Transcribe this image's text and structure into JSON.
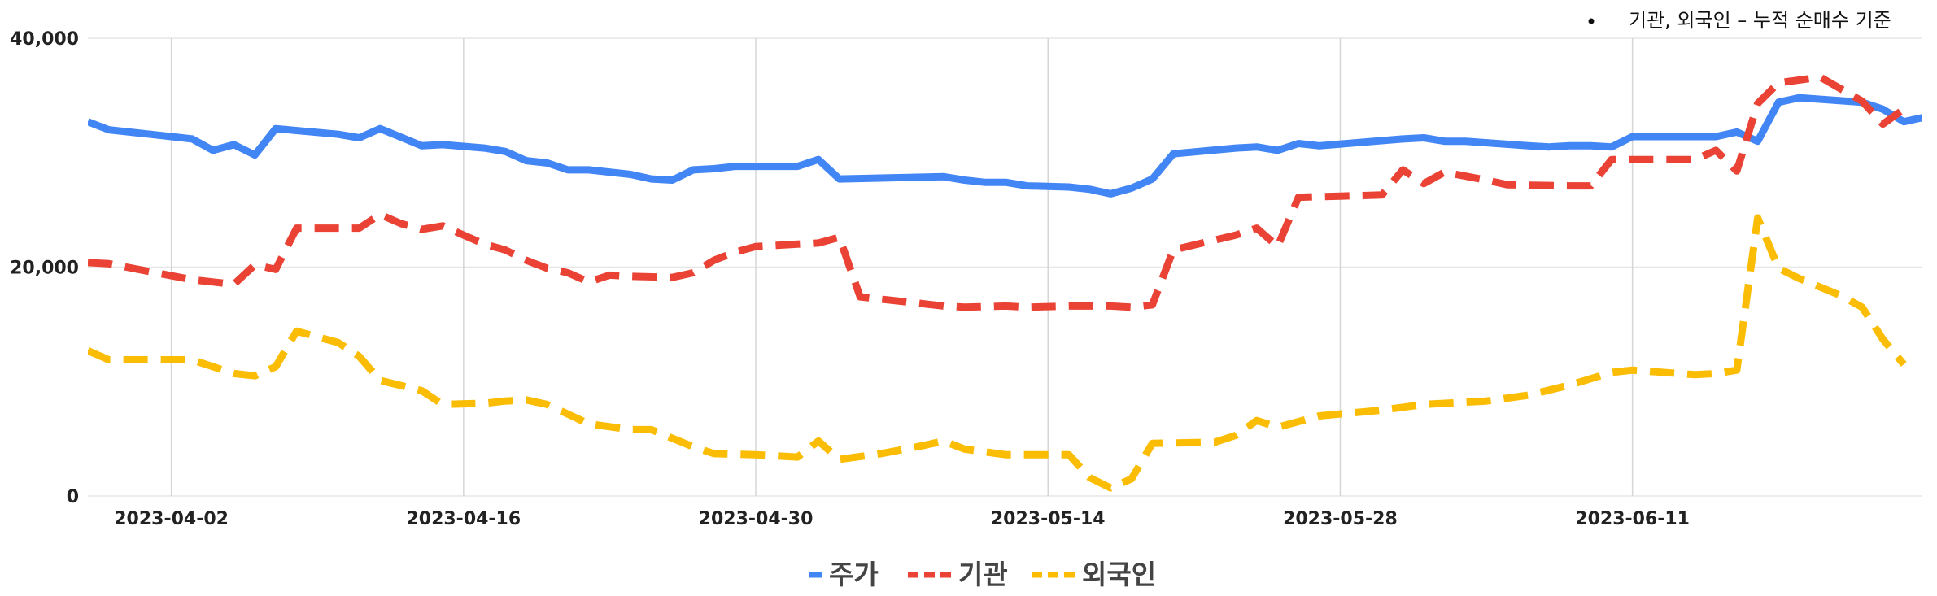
{
  "chart_data": {
    "type": "line",
    "note": "기관, 외국인 – 누적 순매수 기준",
    "x_ticks": [
      "2023-04-02",
      "2023-04-16",
      "2023-04-30",
      "2023-05-14",
      "2023-05-28",
      "2023-06-11"
    ],
    "x_range": [
      "2023-03-29",
      "2023-06-24"
    ],
    "ylim": [
      0,
      40000
    ],
    "y_ticks": [
      "0",
      "20,000",
      "40,000"
    ],
    "y_tick_values": [
      0,
      20000,
      40000
    ],
    "grid": true,
    "legend_position": "bottom",
    "series": [
      {
        "name": "주가",
        "color": "#4285F4",
        "style": "solid",
        "points": [
          [
            "2023-03-29",
            32700
          ],
          [
            "2023-03-30",
            32000
          ],
          [
            "2023-04-01",
            31600
          ],
          [
            "2023-04-03",
            31200
          ],
          [
            "2023-04-04",
            30200
          ],
          [
            "2023-04-05",
            30700
          ],
          [
            "2023-04-06",
            29800
          ],
          [
            "2023-04-07",
            32100
          ],
          [
            "2023-04-10",
            31600
          ],
          [
            "2023-04-11",
            31300
          ],
          [
            "2023-04-12",
            32100
          ],
          [
            "2023-04-14",
            30600
          ],
          [
            "2023-04-15",
            30700
          ],
          [
            "2023-04-17",
            30400
          ],
          [
            "2023-04-18",
            30100
          ],
          [
            "2023-04-19",
            29300
          ],
          [
            "2023-04-20",
            29100
          ],
          [
            "2023-04-21",
            28500
          ],
          [
            "2023-04-22",
            28500
          ],
          [
            "2023-04-24",
            28100
          ],
          [
            "2023-04-25",
            27700
          ],
          [
            "2023-04-26",
            27600
          ],
          [
            "2023-04-27",
            28500
          ],
          [
            "2023-04-28",
            28600
          ],
          [
            "2023-04-29",
            28800
          ],
          [
            "2023-05-01",
            28800
          ],
          [
            "2023-05-02",
            28800
          ],
          [
            "2023-05-03",
            29400
          ],
          [
            "2023-05-04",
            27700
          ],
          [
            "2023-05-09",
            27900
          ],
          [
            "2023-05-10",
            27600
          ],
          [
            "2023-05-11",
            27400
          ],
          [
            "2023-05-12",
            27400
          ],
          [
            "2023-05-13",
            27100
          ],
          [
            "2023-05-15",
            27000
          ],
          [
            "2023-05-16",
            26800
          ],
          [
            "2023-05-17",
            26400
          ],
          [
            "2023-05-18",
            26900
          ],
          [
            "2023-05-19",
            27700
          ],
          [
            "2023-05-20",
            29900
          ],
          [
            "2023-05-23",
            30400
          ],
          [
            "2023-05-24",
            30500
          ],
          [
            "2023-05-25",
            30200
          ],
          [
            "2023-05-26",
            30800
          ],
          [
            "2023-05-27",
            30600
          ],
          [
            "2023-05-31",
            31200
          ],
          [
            "2023-06-01",
            31300
          ],
          [
            "2023-06-02",
            31000
          ],
          [
            "2023-06-03",
            31000
          ],
          [
            "2023-06-06",
            30600
          ],
          [
            "2023-06-07",
            30500
          ],
          [
            "2023-06-08",
            30600
          ],
          [
            "2023-06-09",
            30600
          ],
          [
            "2023-06-10",
            30500
          ],
          [
            "2023-06-11",
            31400
          ],
          [
            "2023-06-15",
            31400
          ],
          [
            "2023-06-16",
            31800
          ],
          [
            "2023-06-17",
            31000
          ],
          [
            "2023-06-18",
            34400
          ],
          [
            "2023-06-19",
            34800
          ],
          [
            "2023-06-22",
            34400
          ],
          [
            "2023-06-23",
            33800
          ],
          [
            "2023-06-24",
            32700
          ],
          [
            "2023-06-25",
            33100
          ]
        ]
      },
      {
        "name": "기관",
        "color": "#EA4335",
        "style": "dashed",
        "points": [
          [
            "2023-03-29",
            20400
          ],
          [
            "2023-03-30",
            20300
          ],
          [
            "2023-04-03",
            18900
          ],
          [
            "2023-04-04",
            18700
          ],
          [
            "2023-04-05",
            18500
          ],
          [
            "2023-04-06",
            20200
          ],
          [
            "2023-04-07",
            19800
          ],
          [
            "2023-04-08",
            23400
          ],
          [
            "2023-04-10",
            23400
          ],
          [
            "2023-04-11",
            23400
          ],
          [
            "2023-04-12",
            24600
          ],
          [
            "2023-04-13",
            23800
          ],
          [
            "2023-04-14",
            23300
          ],
          [
            "2023-04-15",
            23600
          ],
          [
            "2023-04-16",
            22800
          ],
          [
            "2023-04-17",
            22000
          ],
          [
            "2023-04-18",
            21500
          ],
          [
            "2023-04-19",
            20600
          ],
          [
            "2023-04-20",
            19900
          ],
          [
            "2023-04-21",
            19500
          ],
          [
            "2023-04-22",
            18700
          ],
          [
            "2023-04-23",
            19300
          ],
          [
            "2023-04-24",
            19200
          ],
          [
            "2023-04-26",
            19100
          ],
          [
            "2023-04-27",
            19500
          ],
          [
            "2023-04-28",
            20600
          ],
          [
            "2023-04-29",
            21300
          ],
          [
            "2023-04-30",
            21800
          ],
          [
            "2023-05-01",
            21900
          ],
          [
            "2023-05-02",
            22000
          ],
          [
            "2023-05-03",
            22100
          ],
          [
            "2023-05-04",
            22600
          ],
          [
            "2023-05-05",
            17400
          ],
          [
            "2023-05-08",
            16800
          ],
          [
            "2023-05-09",
            16600
          ],
          [
            "2023-05-10",
            16500
          ],
          [
            "2023-05-12",
            16600
          ],
          [
            "2023-05-13",
            16500
          ],
          [
            "2023-05-15",
            16600
          ],
          [
            "2023-05-17",
            16600
          ],
          [
            "2023-05-18",
            16500
          ],
          [
            "2023-05-19",
            16700
          ],
          [
            "2023-05-20",
            21500
          ],
          [
            "2023-05-23",
            22800
          ],
          [
            "2023-05-24",
            23400
          ],
          [
            "2023-05-25",
            21800
          ],
          [
            "2023-05-26",
            26100
          ],
          [
            "2023-05-30",
            26300
          ],
          [
            "2023-05-31",
            28500
          ],
          [
            "2023-06-01",
            27300
          ],
          [
            "2023-06-02",
            28300
          ],
          [
            "2023-06-04",
            27600
          ],
          [
            "2023-06-05",
            27200
          ],
          [
            "2023-06-08",
            27100
          ],
          [
            "2023-06-09",
            27100
          ],
          [
            "2023-06-10",
            29400
          ],
          [
            "2023-06-14",
            29400
          ],
          [
            "2023-06-15",
            30200
          ],
          [
            "2023-06-16",
            28400
          ],
          [
            "2023-06-17",
            34300
          ],
          [
            "2023-06-18",
            36100
          ],
          [
            "2023-06-20",
            36600
          ],
          [
            "2023-06-22",
            34500
          ],
          [
            "2023-06-23",
            32500
          ],
          [
            "2023-06-24",
            33800
          ]
        ]
      },
      {
        "name": "외국인",
        "color": "#FBBC04",
        "style": "dashed",
        "points": [
          [
            "2023-03-29",
            12700
          ],
          [
            "2023-03-30",
            11900
          ],
          [
            "2023-04-03",
            11900
          ],
          [
            "2023-04-04",
            11300
          ],
          [
            "2023-04-05",
            10700
          ],
          [
            "2023-04-06",
            10500
          ],
          [
            "2023-04-07",
            11300
          ],
          [
            "2023-04-08",
            14400
          ],
          [
            "2023-04-10",
            13400
          ],
          [
            "2023-04-11",
            12200
          ],
          [
            "2023-04-12",
            10100
          ],
          [
            "2023-04-14",
            9200
          ],
          [
            "2023-04-15",
            8000
          ],
          [
            "2023-04-17",
            8100
          ],
          [
            "2023-04-18",
            8300
          ],
          [
            "2023-04-19",
            8400
          ],
          [
            "2023-04-20",
            8000
          ],
          [
            "2023-04-22",
            6300
          ],
          [
            "2023-04-24",
            5800
          ],
          [
            "2023-04-25",
            5800
          ],
          [
            "2023-04-27",
            4300
          ],
          [
            "2023-04-28",
            3700
          ],
          [
            "2023-04-30",
            3600
          ],
          [
            "2023-05-01",
            3500
          ],
          [
            "2023-05-02",
            3400
          ],
          [
            "2023-05-03",
            4800
          ],
          [
            "2023-05-04",
            3200
          ],
          [
            "2023-05-06",
            3700
          ],
          [
            "2023-05-08",
            4400
          ],
          [
            "2023-05-09",
            4800
          ],
          [
            "2023-05-10",
            4100
          ],
          [
            "2023-05-12",
            3600
          ],
          [
            "2023-05-15",
            3600
          ],
          [
            "2023-05-16",
            1600
          ],
          [
            "2023-05-17",
            700
          ],
          [
            "2023-05-18",
            1500
          ],
          [
            "2023-05-19",
            4600
          ],
          [
            "2023-05-22",
            4700
          ],
          [
            "2023-05-23",
            5300
          ],
          [
            "2023-05-24",
            6600
          ],
          [
            "2023-05-25",
            6000
          ],
          [
            "2023-05-27",
            7000
          ],
          [
            "2023-05-30",
            7500
          ],
          [
            "2023-06-01",
            8000
          ],
          [
            "2023-06-03",
            8200
          ],
          [
            "2023-06-04",
            8300
          ],
          [
            "2023-06-06",
            8800
          ],
          [
            "2023-06-08",
            9700
          ],
          [
            "2023-06-10",
            10800
          ],
          [
            "2023-06-11",
            11000
          ],
          [
            "2023-06-14",
            10600
          ],
          [
            "2023-06-15",
            10700
          ],
          [
            "2023-06-16",
            11000
          ],
          [
            "2023-06-17",
            24300
          ],
          [
            "2023-06-18",
            19900
          ],
          [
            "2023-06-19",
            19000
          ],
          [
            "2023-06-21",
            17500
          ],
          [
            "2023-06-22",
            16500
          ],
          [
            "2023-06-23",
            13700
          ],
          [
            "2023-06-24",
            11500
          ]
        ]
      }
    ]
  }
}
